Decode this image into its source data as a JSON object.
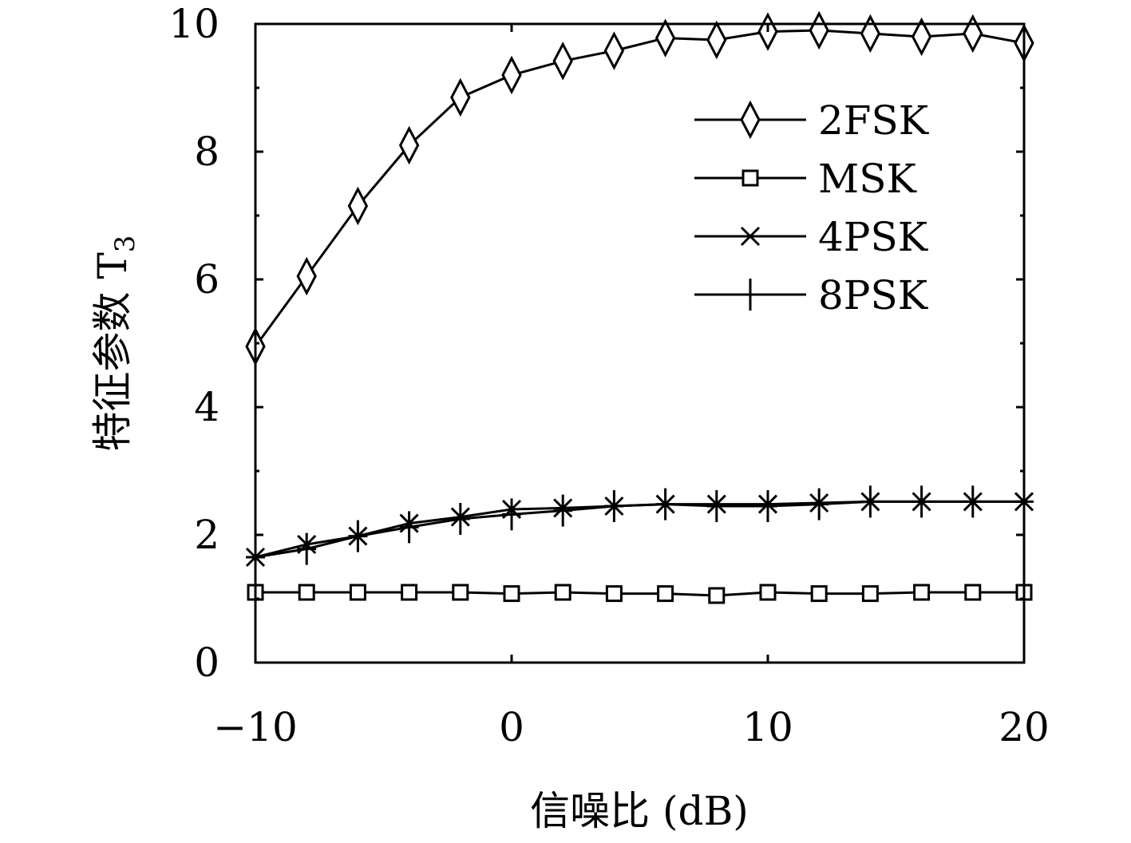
{
  "chart_data": {
    "type": "line",
    "xlabel": "信噪比 (dB)",
    "ylabel": "特征参数 T",
    "ylabel_subscript": "3",
    "xlim": [
      -10,
      20
    ],
    "ylim": [
      0,
      10
    ],
    "xticks": [
      -10,
      0,
      10,
      20
    ],
    "xtick_labels": [
      "−10",
      "0",
      "10",
      "20"
    ],
    "yticks": [
      0,
      2,
      4,
      6,
      8,
      10
    ],
    "yminor_ticks": [
      1,
      3,
      5,
      7,
      9
    ],
    "legend_position": "upper-right",
    "grid": false,
    "series": [
      {
        "name": "2FSK",
        "marker": "diamond",
        "x": [
          -10,
          -8,
          -6,
          -4,
          -2,
          0,
          2,
          4,
          6,
          8,
          10,
          12,
          14,
          16,
          18,
          20
        ],
        "y": [
          4.95,
          6.05,
          7.15,
          8.1,
          8.85,
          9.2,
          9.42,
          9.58,
          9.78,
          9.75,
          9.88,
          9.9,
          9.85,
          9.8,
          9.85,
          9.7
        ]
      },
      {
        "name": "MSK",
        "marker": "square",
        "x": [
          -10,
          -8,
          -6,
          -4,
          -2,
          0,
          2,
          4,
          6,
          8,
          10,
          12,
          14,
          16,
          18,
          20
        ],
        "y": [
          1.1,
          1.1,
          1.1,
          1.1,
          1.1,
          1.08,
          1.1,
          1.08,
          1.08,
          1.05,
          1.1,
          1.08,
          1.08,
          1.1,
          1.1,
          1.1
        ]
      },
      {
        "name": "4PSK",
        "marker": "x",
        "x": [
          -10,
          -8,
          -6,
          -4,
          -2,
          0,
          2,
          4,
          6,
          8,
          10,
          12,
          14,
          16,
          18,
          20
        ],
        "y": [
          1.65,
          1.85,
          1.98,
          2.18,
          2.28,
          2.4,
          2.42,
          2.45,
          2.48,
          2.48,
          2.48,
          2.5,
          2.52,
          2.52,
          2.52,
          2.52
        ]
      },
      {
        "name": "8PSK",
        "marker": "plus",
        "x": [
          -10,
          -8,
          -6,
          -4,
          -2,
          0,
          2,
          4,
          6,
          8,
          10,
          12,
          14,
          16,
          18,
          20
        ],
        "y": [
          1.65,
          1.78,
          1.98,
          2.12,
          2.25,
          2.32,
          2.38,
          2.45,
          2.48,
          2.45,
          2.45,
          2.48,
          2.52,
          2.52,
          2.52,
          2.52
        ]
      }
    ]
  }
}
